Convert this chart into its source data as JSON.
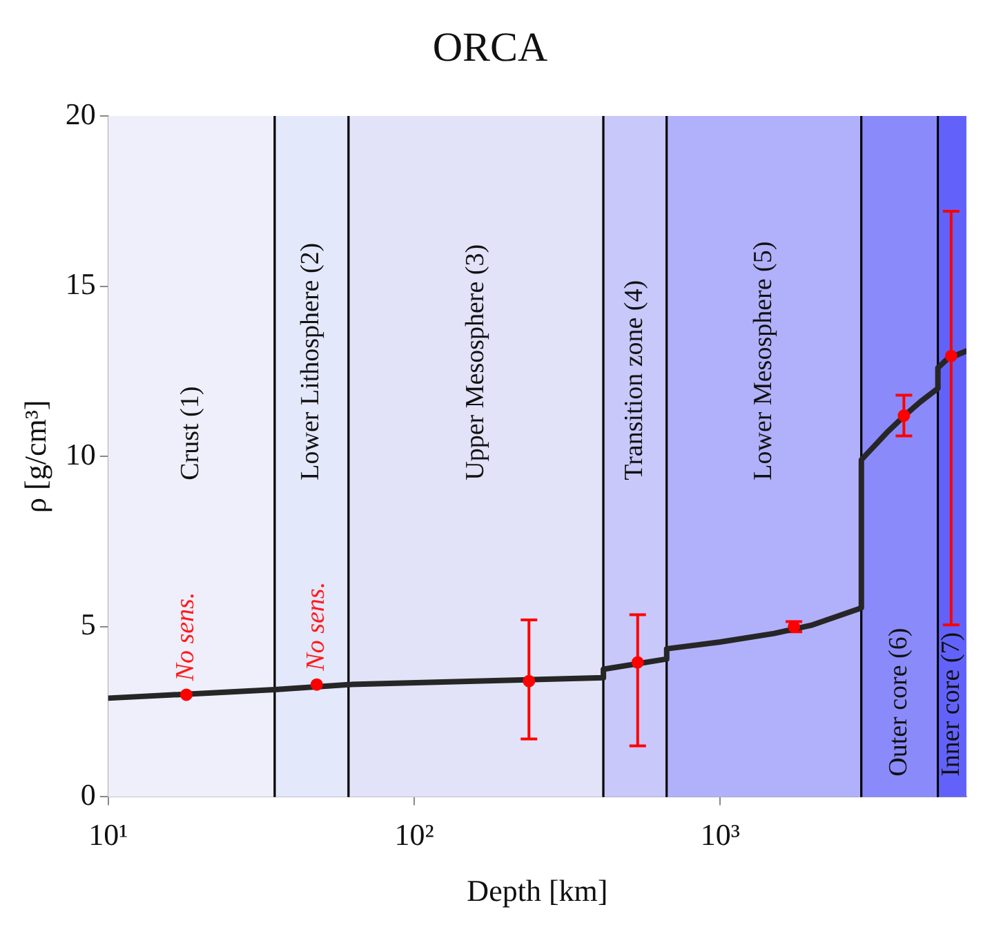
{
  "chart_data": {
    "type": "line",
    "title": "ORCA",
    "xlabel": "Depth [km]",
    "ylabel": "ρ [g/cm³]",
    "log": "x",
    "xlim": [
      10,
      6371
    ],
    "ylim": [
      0,
      20
    ],
    "xticks": [
      {
        "value": 10,
        "label": "10¹"
      },
      {
        "value": 100,
        "label": "10²"
      },
      {
        "value": 1000,
        "label": "10³"
      }
    ],
    "yticks": [
      0,
      5,
      10,
      15,
      20
    ],
    "grid": false,
    "legend": false,
    "bands": [
      {
        "axis": "x",
        "from": 10,
        "to": 35,
        "label": "Crust (1)",
        "color": "#efeffb"
      },
      {
        "axis": "x",
        "from": 35,
        "to": 61,
        "label": "Lower Lithosphere (2)",
        "color": "#e4e8fb"
      },
      {
        "axis": "x",
        "from": 61,
        "to": 415,
        "label": "Upper Mesosphere (3)",
        "color": "#e2e2f8"
      },
      {
        "axis": "x",
        "from": 415,
        "to": 668,
        "label": "Transition zone (4)",
        "color": "#c8c8fa"
      },
      {
        "axis": "x",
        "from": 668,
        "to": 2890,
        "label": "Lower Mesosphere (5)",
        "color": "#b1b1fb"
      },
      {
        "axis": "x",
        "from": 2890,
        "to": 5140,
        "label": "Outer core (6)",
        "color": "#8a8afb"
      },
      {
        "axis": "x",
        "from": 5140,
        "to": 6371,
        "label": "Inner core (7)",
        "color": "#6262fb"
      }
    ],
    "series": [
      {
        "color": "#262626",
        "x": [
          10,
          35,
          61,
          415,
          415,
          668,
          668,
          1000,
          1500,
          2000,
          2890,
          2890,
          3500,
          4000,
          4500,
          5140,
          5140,
          5500,
          6000,
          6371
        ],
        "values": [
          2.9,
          3.15,
          3.3,
          3.5,
          3.75,
          4.05,
          4.35,
          4.55,
          4.8,
          5.05,
          5.55,
          9.9,
          10.7,
          11.2,
          11.6,
          12.0,
          12.6,
          12.85,
          13.0,
          13.1
        ]
      },
      {
        "type": "scatter",
        "color": "#ff0000",
        "marker": "circle",
        "x": [
          18,
          48,
          237,
          537,
          1740,
          3980,
          5680
        ],
        "values": [
          3.0,
          3.3,
          3.4,
          3.95,
          5.0,
          11.2,
          12.95
        ],
        "errors": [
          null,
          null,
          [
            1.7,
            5.2
          ],
          [
            1.5,
            5.35
          ],
          [
            4.85,
            5.15
          ],
          [
            10.6,
            11.8
          ],
          [
            5.05,
            17.2
          ]
        ]
      }
    ],
    "annotations": [
      {
        "text": "No sens.",
        "x": 18,
        "y": 3.0
      },
      {
        "text": "No sens.",
        "x": 48,
        "y": 3.3
      }
    ]
  }
}
